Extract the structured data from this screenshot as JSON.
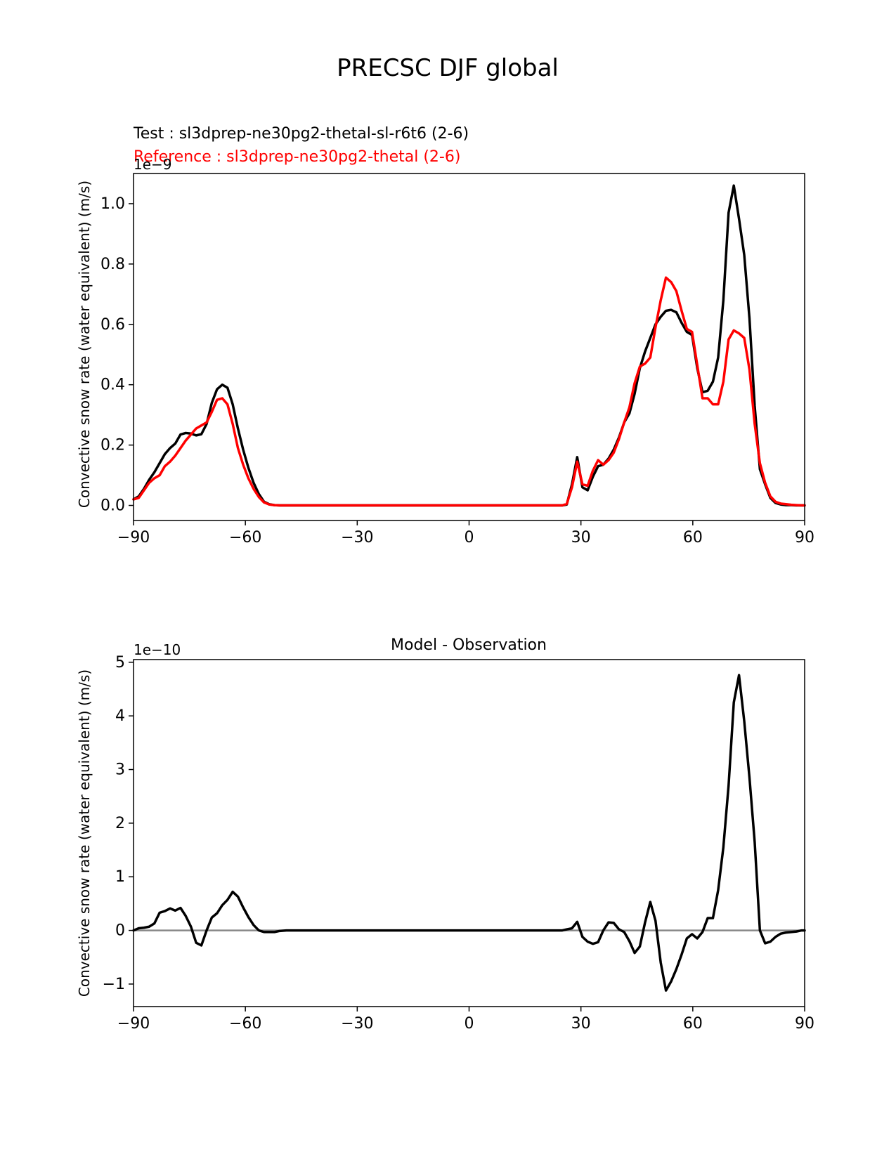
{
  "figure": {
    "title": "PRECSC DJF global"
  },
  "chart_data": [
    {
      "type": "line",
      "test_label": "Test : sl3dprep-ne30pg2-thetal-sl-r6t6 (2-6)",
      "reference_label": "Reference : sl3dprep-ne30pg2-thetal (2-6)",
      "ylabel": "Convective snow rate (water equivalent) (m/s)",
      "offset_label": "1e−9",
      "xlim": [
        -90,
        90
      ],
      "ylim": [
        -0.05,
        1.1
      ],
      "xticks": [
        -90,
        -60,
        -30,
        0,
        30,
        60,
        90
      ],
      "xtick_labels": [
        "−90",
        "−60",
        "−30",
        "0",
        "30",
        "60",
        "90"
      ],
      "yticks": [
        0.0,
        0.2,
        0.4,
        0.6,
        0.8,
        1.0
      ],
      "ytick_labels": [
        "0.0",
        "0.2",
        "0.4",
        "0.6",
        "0.8",
        "1.0"
      ],
      "series": [
        {
          "color": "#000000",
          "x": [
            -90,
            -88.6,
            -87.2,
            -85.8,
            -84.4,
            -83,
            -81.6,
            -80.2,
            -78.8,
            -77.4,
            -76,
            -74.6,
            -73.2,
            -71.8,
            -70.4,
            -69,
            -67.6,
            -66.2,
            -64.8,
            -63.4,
            -62,
            -60.6,
            -59.2,
            -57.8,
            -56.4,
            -55,
            -53.6,
            -52.2,
            -50.8,
            -49,
            -40,
            -30,
            -20,
            -10,
            0,
            10,
            20,
            25,
            26.2,
            27.6,
            29,
            30.4,
            31.8,
            33.2,
            34.6,
            36,
            37.4,
            38.8,
            40.2,
            41.6,
            43,
            44.4,
            45.8,
            47.2,
            48.6,
            50,
            51.4,
            52.8,
            54.2,
            55.6,
            57,
            58.4,
            59.8,
            61.2,
            62.6,
            64,
            65.4,
            66.8,
            68.2,
            69.6,
            71,
            72.4,
            73.8,
            75.2,
            76.6,
            78,
            79.4,
            80.8,
            82.2,
            83.6,
            85,
            86.4,
            87.8,
            89.2,
            90
          ],
          "y": [
            0.02,
            0.03,
            0.055,
            0.085,
            0.11,
            0.14,
            0.17,
            0.19,
            0.205,
            0.235,
            0.24,
            0.238,
            0.232,
            0.236,
            0.27,
            0.34,
            0.385,
            0.4,
            0.39,
            0.335,
            0.255,
            0.185,
            0.125,
            0.075,
            0.038,
            0.012,
            0.004,
            0.001,
            0.0,
            0.0,
            0.0,
            0.0,
            0.0,
            0.0,
            0.0,
            0.0,
            0.0,
            0.0,
            0.003,
            0.07,
            0.16,
            0.06,
            0.05,
            0.095,
            0.13,
            0.135,
            0.155,
            0.185,
            0.225,
            0.275,
            0.305,
            0.37,
            0.455,
            0.51,
            0.555,
            0.6,
            0.625,
            0.645,
            0.648,
            0.64,
            0.605,
            0.575,
            0.565,
            0.455,
            0.375,
            0.38,
            0.41,
            0.49,
            0.68,
            0.97,
            1.06,
            0.95,
            0.83,
            0.62,
            0.33,
            0.12,
            0.07,
            0.025,
            0.008,
            0.003,
            0.001,
            0.001,
            0.0,
            0.0,
            0.0
          ]
        },
        {
          "color": "#ff0000",
          "x": [
            -90,
            -88.6,
            -87.2,
            -85.8,
            -84.4,
            -83,
            -81.6,
            -80.2,
            -78.8,
            -77.4,
            -76,
            -74.6,
            -73.2,
            -71.8,
            -70.4,
            -69,
            -67.6,
            -66.2,
            -64.8,
            -63.4,
            -62,
            -60.6,
            -59.2,
            -57.8,
            -56.4,
            -55,
            -53.6,
            -52.2,
            -50.8,
            -49,
            -40,
            -30,
            -20,
            -10,
            0,
            10,
            20,
            25,
            26.2,
            27.6,
            29,
            30.4,
            31.8,
            33.2,
            34.6,
            36,
            37.4,
            38.8,
            40.2,
            41.6,
            43,
            44.4,
            45.8,
            47.2,
            48.6,
            50,
            51.4,
            52.8,
            54.2,
            55.6,
            57,
            58.4,
            59.8,
            61.2,
            62.6,
            64,
            65.4,
            66.8,
            68.2,
            69.6,
            71,
            72.4,
            73.8,
            75.2,
            76.6,
            78,
            79.4,
            80.8,
            82.2,
            83.6,
            85,
            86.4,
            87.8,
            89.2,
            90
          ],
          "y": [
            0.02,
            0.025,
            0.05,
            0.075,
            0.09,
            0.1,
            0.13,
            0.145,
            0.165,
            0.19,
            0.215,
            0.235,
            0.255,
            0.265,
            0.275,
            0.31,
            0.35,
            0.355,
            0.335,
            0.27,
            0.19,
            0.135,
            0.09,
            0.055,
            0.028,
            0.01,
            0.003,
            0.001,
            0.0,
            0.0,
            0.0,
            0.0,
            0.0,
            0.0,
            0.0,
            0.0,
            0.0,
            0.0,
            0.005,
            0.06,
            0.145,
            0.07,
            0.065,
            0.115,
            0.15,
            0.135,
            0.15,
            0.175,
            0.22,
            0.275,
            0.325,
            0.405,
            0.46,
            0.47,
            0.49,
            0.59,
            0.68,
            0.755,
            0.74,
            0.71,
            0.645,
            0.585,
            0.575,
            0.465,
            0.355,
            0.355,
            0.335,
            0.335,
            0.41,
            0.55,
            0.58,
            0.57,
            0.555,
            0.45,
            0.27,
            0.14,
            0.075,
            0.03,
            0.012,
            0.006,
            0.004,
            0.002,
            0.001,
            0.0,
            0.0
          ]
        }
      ]
    },
    {
      "type": "line",
      "title": "Model - Observation",
      "ylabel": "Convective snow rate (water equivalent) (m/s)",
      "offset_label": "1e−10",
      "xlim": [
        -90,
        90
      ],
      "ylim": [
        -1.42,
        5.05
      ],
      "xticks": [
        -90,
        -60,
        -30,
        0,
        30,
        60,
        90
      ],
      "xtick_labels": [
        "−90",
        "−60",
        "−30",
        "0",
        "30",
        "60",
        "90"
      ],
      "yticks": [
        -1,
        0,
        1,
        2,
        3,
        4,
        5
      ],
      "ytick_labels": [
        "−1",
        "0",
        "1",
        "2",
        "3",
        "4",
        "5"
      ],
      "zero_line_color": "#888888",
      "series": [
        {
          "color": "#000000",
          "x": [
            -90,
            -88.6,
            -87.2,
            -85.8,
            -84.4,
            -83,
            -81.6,
            -80.2,
            -78.8,
            -77.4,
            -76,
            -74.6,
            -73.2,
            -71.8,
            -70.4,
            -69,
            -67.6,
            -66.2,
            -64.8,
            -63.4,
            -62,
            -60.6,
            -59.2,
            -57.8,
            -56.4,
            -55,
            -53.6,
            -52.2,
            -50.8,
            -49,
            -40,
            -30,
            -20,
            -10,
            0,
            10,
            20,
            25,
            26.2,
            27.6,
            29,
            30.4,
            31.8,
            33.2,
            34.6,
            36,
            37.4,
            38.8,
            40.2,
            41.6,
            43,
            44.4,
            45.8,
            47.2,
            48.6,
            50,
            51.4,
            52.8,
            54.2,
            55.6,
            57,
            58.4,
            59.8,
            61.2,
            62.6,
            64,
            65.4,
            66.8,
            68.2,
            69.6,
            71,
            72.4,
            73.8,
            75.2,
            76.6,
            78,
            79.4,
            80.8,
            82.2,
            83.6,
            85,
            86.4,
            87.8,
            89.2,
            90
          ],
          "y": [
            0.0,
            0.04,
            0.05,
            0.07,
            0.13,
            0.33,
            0.36,
            0.41,
            0.37,
            0.42,
            0.27,
            0.07,
            -0.23,
            -0.28,
            0.0,
            0.24,
            0.32,
            0.47,
            0.57,
            0.72,
            0.63,
            0.43,
            0.25,
            0.1,
            0.0,
            -0.03,
            -0.03,
            -0.03,
            -0.01,
            0.0,
            0.0,
            0.0,
            0.0,
            0.0,
            0.0,
            0.0,
            0.0,
            0.0,
            0.02,
            0.04,
            0.16,
            -0.12,
            -0.21,
            -0.25,
            -0.22,
            0.0,
            0.15,
            0.14,
            0.02,
            -0.03,
            -0.2,
            -0.42,
            -0.3,
            0.15,
            0.53,
            0.18,
            -0.6,
            -1.12,
            -0.95,
            -0.72,
            -0.45,
            -0.15,
            -0.07,
            -0.15,
            -0.03,
            0.23,
            0.23,
            0.75,
            1.55,
            2.7,
            4.25,
            4.76,
            3.9,
            2.85,
            1.65,
            0.0,
            -0.24,
            -0.21,
            -0.12,
            -0.06,
            -0.04,
            -0.03,
            -0.02,
            0.0,
            0.0
          ]
        }
      ]
    }
  ]
}
